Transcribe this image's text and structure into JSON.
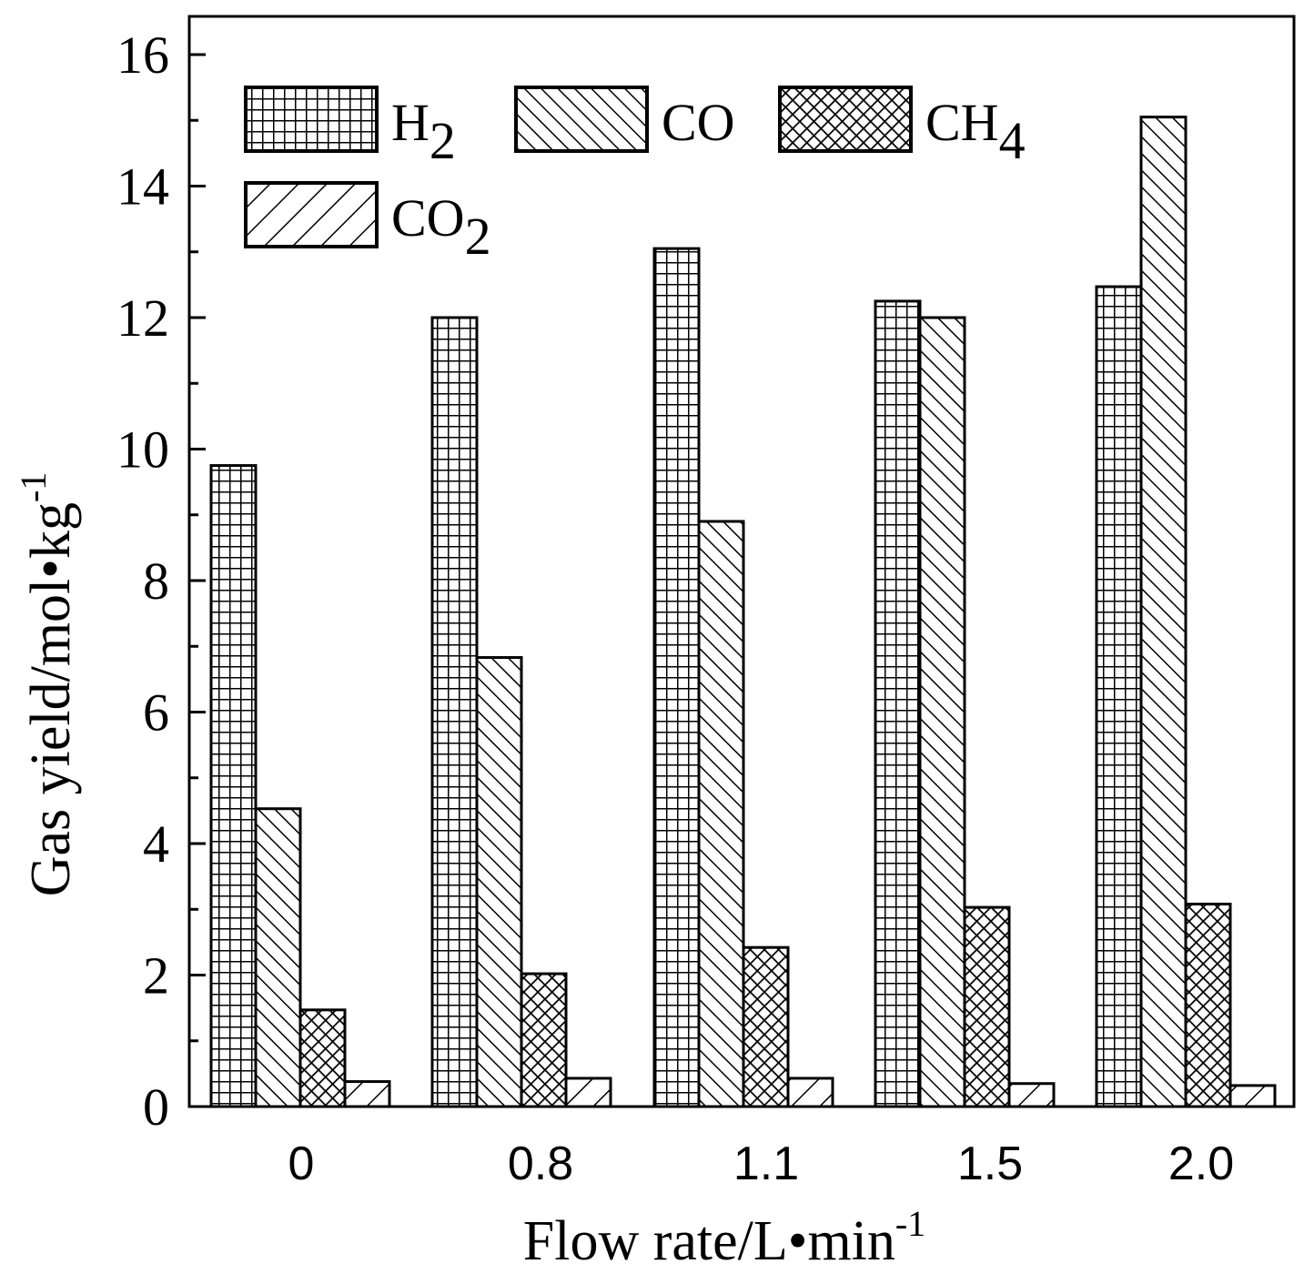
{
  "chart_data": {
    "type": "bar",
    "title": "",
    "xlabel": "Flow rate/L•min",
    "xlabel_sup": "-1",
    "ylabel": "Gas yield/mol•kg",
    "ylabel_sup": "-1",
    "categories": [
      "0",
      "0.8",
      "1.1",
      "1.5",
      "2.0"
    ],
    "ylim": [
      0,
      16
    ],
    "yticks": [
      0,
      2,
      4,
      6,
      8,
      10,
      12,
      14,
      16
    ],
    "ytick_labels": [
      "0",
      "2",
      "4",
      "6",
      "8",
      "10",
      "12",
      "14",
      "16"
    ],
    "grid": false,
    "legend_position": "top-left",
    "series": [
      {
        "name": "H2",
        "label_main": "H",
        "label_sub": "2",
        "pattern": "grid",
        "values": [
          9.75,
          12.0,
          13.05,
          12.25,
          12.47
        ]
      },
      {
        "name": "CO",
        "label_main": "CO",
        "label_sub": "",
        "pattern": "back-diagonal",
        "values": [
          4.53,
          6.83,
          8.9,
          12.0,
          15.05
        ]
      },
      {
        "name": "CH4",
        "label_main": "CH",
        "label_sub": "4",
        "pattern": "crosshatch",
        "values": [
          1.47,
          2.02,
          2.42,
          3.03,
          3.08
        ]
      },
      {
        "name": "CO2",
        "label_main": "CO",
        "label_sub": "2",
        "pattern": "forward-diagonal",
        "values": [
          0.38,
          0.43,
          0.43,
          0.35,
          0.32
        ]
      }
    ],
    "colors": {
      "ink": "#000000",
      "fill": "#ffffff"
    }
  }
}
